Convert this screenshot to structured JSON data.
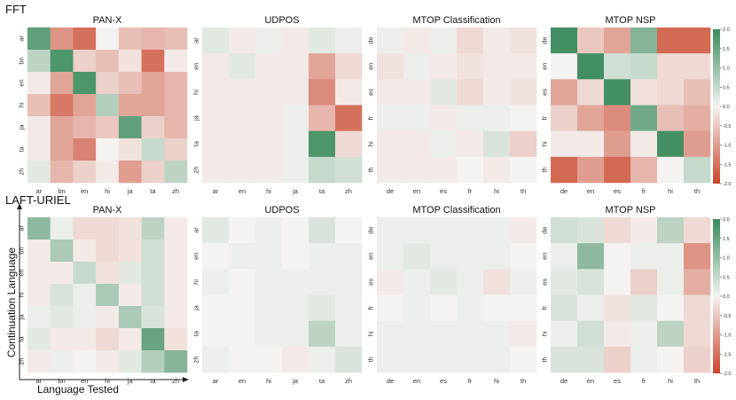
{
  "figure": {
    "row_labels": [
      "FFT",
      "LAFT-URIEL"
    ],
    "ylabel": "Continuation Language",
    "xlabel": "Language Tested"
  },
  "colors": {
    "low": "#c9462b",
    "mid": "#f5f3f2",
    "high": "#3a8a5c"
  },
  "colorbar": {
    "ticks": [
      "2.0",
      "1.5",
      "1.0",
      "0.5",
      "0.0",
      "-0.5",
      "-1.0",
      "-1.5",
      "-2.0"
    ],
    "range": [
      -2.0,
      2.0
    ]
  },
  "chart_data": [
    {
      "type": "heatmap",
      "group": "FFT",
      "title": "PAN-X",
      "rows": [
        "ar",
        "bn",
        "en",
        "hi",
        "ja",
        "ta",
        "zh"
      ],
      "cols": [
        "ar",
        "bn",
        "en",
        "hi",
        "ja",
        "ta",
        "zh"
      ],
      "values": [
        [
          1.6,
          -1.1,
          -1.5,
          0.0,
          -0.6,
          -0.7,
          -0.6
        ],
        [
          0.6,
          1.8,
          -0.4,
          -0.6,
          -0.2,
          -1.5,
          -0.1
        ],
        [
          -0.1,
          -0.9,
          1.8,
          -0.4,
          -0.6,
          -0.9,
          -0.7
        ],
        [
          -0.6,
          -1.4,
          -0.9,
          0.7,
          -0.9,
          -0.9,
          -0.7
        ],
        [
          -0.1,
          -0.9,
          -0.7,
          -0.5,
          1.6,
          -0.4,
          -0.7
        ],
        [
          -0.1,
          -0.9,
          -1.3,
          0.0,
          -0.2,
          0.5,
          -0.4
        ],
        [
          0.2,
          -0.7,
          -0.4,
          -0.1,
          -1.0,
          -0.4,
          0.6
        ]
      ]
    },
    {
      "type": "heatmap",
      "group": "FFT",
      "title": "UDPOS",
      "rows": [
        "ar",
        "en",
        "hi",
        "ja",
        "ta",
        "zh"
      ],
      "cols": [
        "ar",
        "en",
        "hi",
        "ja",
        "ta",
        "zh"
      ],
      "values": [
        [
          0.2,
          -0.1,
          0.1,
          -0.1,
          0.2,
          0.1
        ],
        [
          -0.1,
          0.2,
          -0.1,
          -0.1,
          -0.9,
          -0.3
        ],
        [
          -0.1,
          -0.1,
          -0.1,
          -0.1,
          -1.2,
          -0.1
        ],
        [
          -0.1,
          -0.1,
          -0.1,
          0.1,
          -0.7,
          -1.5
        ],
        [
          -0.1,
          -0.1,
          -0.1,
          0.1,
          1.8,
          -0.3
        ],
        [
          -0.1,
          -0.1,
          -0.1,
          0.1,
          0.5,
          0.4
        ]
      ]
    },
    {
      "type": "heatmap",
      "group": "FFT",
      "title": "MTOP Classification",
      "rows": [
        "de",
        "en",
        "es",
        "fr",
        "hi",
        "th"
      ],
      "cols": [
        "de",
        "en",
        "es",
        "fr",
        "hi",
        "th"
      ],
      "values": [
        [
          0.1,
          -0.1,
          0.1,
          -0.3,
          -0.1,
          -0.2
        ],
        [
          -0.2,
          0.1,
          -0.1,
          -0.2,
          -0.1,
          -0.1
        ],
        [
          -0.1,
          -0.1,
          0.2,
          -0.3,
          -0.1,
          -0.2
        ],
        [
          0.1,
          0.1,
          -0.1,
          0.1,
          0.1,
          0.0
        ],
        [
          -0.1,
          -0.1,
          0.1,
          -0.1,
          0.3,
          -0.4
        ],
        [
          -0.1,
          -0.1,
          -0.1,
          0.0,
          -0.1,
          0.0
        ]
      ]
    },
    {
      "type": "heatmap",
      "group": "FFT",
      "title": "MTOP NSP",
      "rows": [
        "de",
        "en",
        "es",
        "fr",
        "hi",
        "th"
      ],
      "cols": [
        "de",
        "en",
        "es",
        "fr",
        "hi",
        "th"
      ],
      "values": [
        [
          1.9,
          -0.5,
          -0.9,
          1.2,
          -1.6,
          -1.6
        ],
        [
          0.0,
          1.9,
          0.4,
          0.5,
          -0.3,
          -0.3
        ],
        [
          -0.9,
          -0.3,
          1.9,
          -0.2,
          -0.3,
          -0.6
        ],
        [
          -0.4,
          -0.9,
          -1.2,
          1.4,
          -0.6,
          -0.8
        ],
        [
          -0.1,
          -0.1,
          -1.0,
          -0.1,
          1.9,
          -1.0
        ],
        [
          -1.6,
          -1.0,
          -1.6,
          -0.7,
          0.0,
          0.5
        ]
      ]
    },
    {
      "type": "heatmap",
      "group": "LAFT-URIEL",
      "title": "PAN-X",
      "rows": [
        "ar",
        "bn",
        "en",
        "hi",
        "ja",
        "ta",
        "zh"
      ],
      "cols": [
        "ar",
        "bn",
        "en",
        "hi",
        "ja",
        "ta",
        "zh"
      ],
      "values": [
        [
          1.1,
          0.1,
          -0.3,
          -0.3,
          -0.2,
          0.6,
          -0.1
        ],
        [
          -0.1,
          0.8,
          -0.1,
          -0.3,
          -0.2,
          0.4,
          -0.1
        ],
        [
          -0.1,
          -0.1,
          0.5,
          -0.2,
          0.2,
          0.4,
          -0.1
        ],
        [
          -0.1,
          0.3,
          0.1,
          0.8,
          -0.1,
          0.4,
          -0.1
        ],
        [
          0.1,
          0.2,
          0.1,
          -0.1,
          0.8,
          0.3,
          -0.1
        ],
        [
          0.2,
          -0.1,
          -0.1,
          -0.3,
          -0.1,
          1.5,
          -0.2
        ],
        [
          -0.1,
          0.1,
          0.0,
          -0.1,
          0.2,
          0.7,
          1.2
        ]
      ]
    },
    {
      "type": "heatmap",
      "group": "LAFT-URIEL",
      "title": "UDPOS",
      "rows": [
        "ar",
        "en",
        "hi",
        "ja",
        "ta",
        "zh"
      ],
      "cols": [
        "ar",
        "en",
        "hi",
        "ja",
        "ta",
        "zh"
      ],
      "values": [
        [
          0.2,
          0.0,
          0.1,
          0.0,
          0.3,
          0.0
        ],
        [
          0.0,
          0.1,
          0.1,
          0.0,
          0.1,
          0.1
        ],
        [
          0.1,
          0.0,
          0.1,
          0.1,
          0.1,
          0.1
        ],
        [
          0.0,
          0.0,
          0.1,
          0.1,
          0.2,
          0.1
        ],
        [
          0.0,
          0.0,
          0.1,
          0.1,
          0.6,
          0.1
        ],
        [
          0.1,
          0.0,
          0.0,
          -0.1,
          0.1,
          0.3
        ]
      ]
    },
    {
      "type": "heatmap",
      "group": "LAFT-URIEL",
      "title": "MTOP Classification",
      "rows": [
        "de",
        "en",
        "es",
        "fr",
        "hi",
        "th"
      ],
      "cols": [
        "de",
        "en",
        "es",
        "fr",
        "hi",
        "th"
      ],
      "values": [
        [
          0.1,
          0.1,
          0.1,
          0.1,
          0.1,
          -0.1
        ],
        [
          0.1,
          0.2,
          0.1,
          0.1,
          0.1,
          0.0
        ],
        [
          -0.1,
          0.1,
          0.2,
          0.1,
          -0.2,
          0.1
        ],
        [
          0.0,
          0.1,
          0.0,
          0.1,
          0.0,
          0.0
        ],
        [
          0.1,
          0.1,
          0.1,
          0.1,
          0.1,
          -0.1
        ],
        [
          0.1,
          0.1,
          0.1,
          0.1,
          0.1,
          0.0
        ]
      ]
    },
    {
      "type": "heatmap",
      "group": "LAFT-URIEL",
      "title": "MTOP NSP",
      "rows": [
        "de",
        "en",
        "es",
        "fr",
        "hi",
        "th"
      ],
      "cols": [
        "de",
        "en",
        "es",
        "fr",
        "hi",
        "th"
      ],
      "values": [
        [
          0.4,
          0.3,
          -0.3,
          -0.1,
          0.6,
          -0.3
        ],
        [
          0.1,
          1.1,
          0.0,
          0.1,
          0.1,
          -1.1
        ],
        [
          0.2,
          0.3,
          0.0,
          -0.4,
          0.1,
          -0.8
        ],
        [
          0.3,
          0.1,
          -0.2,
          0.2,
          0.0,
          -0.3
        ],
        [
          0.1,
          0.4,
          -0.1,
          0.1,
          0.6,
          -0.3
        ],
        [
          0.3,
          0.3,
          -0.4,
          0.1,
          0.0,
          -0.4
        ]
      ]
    }
  ]
}
